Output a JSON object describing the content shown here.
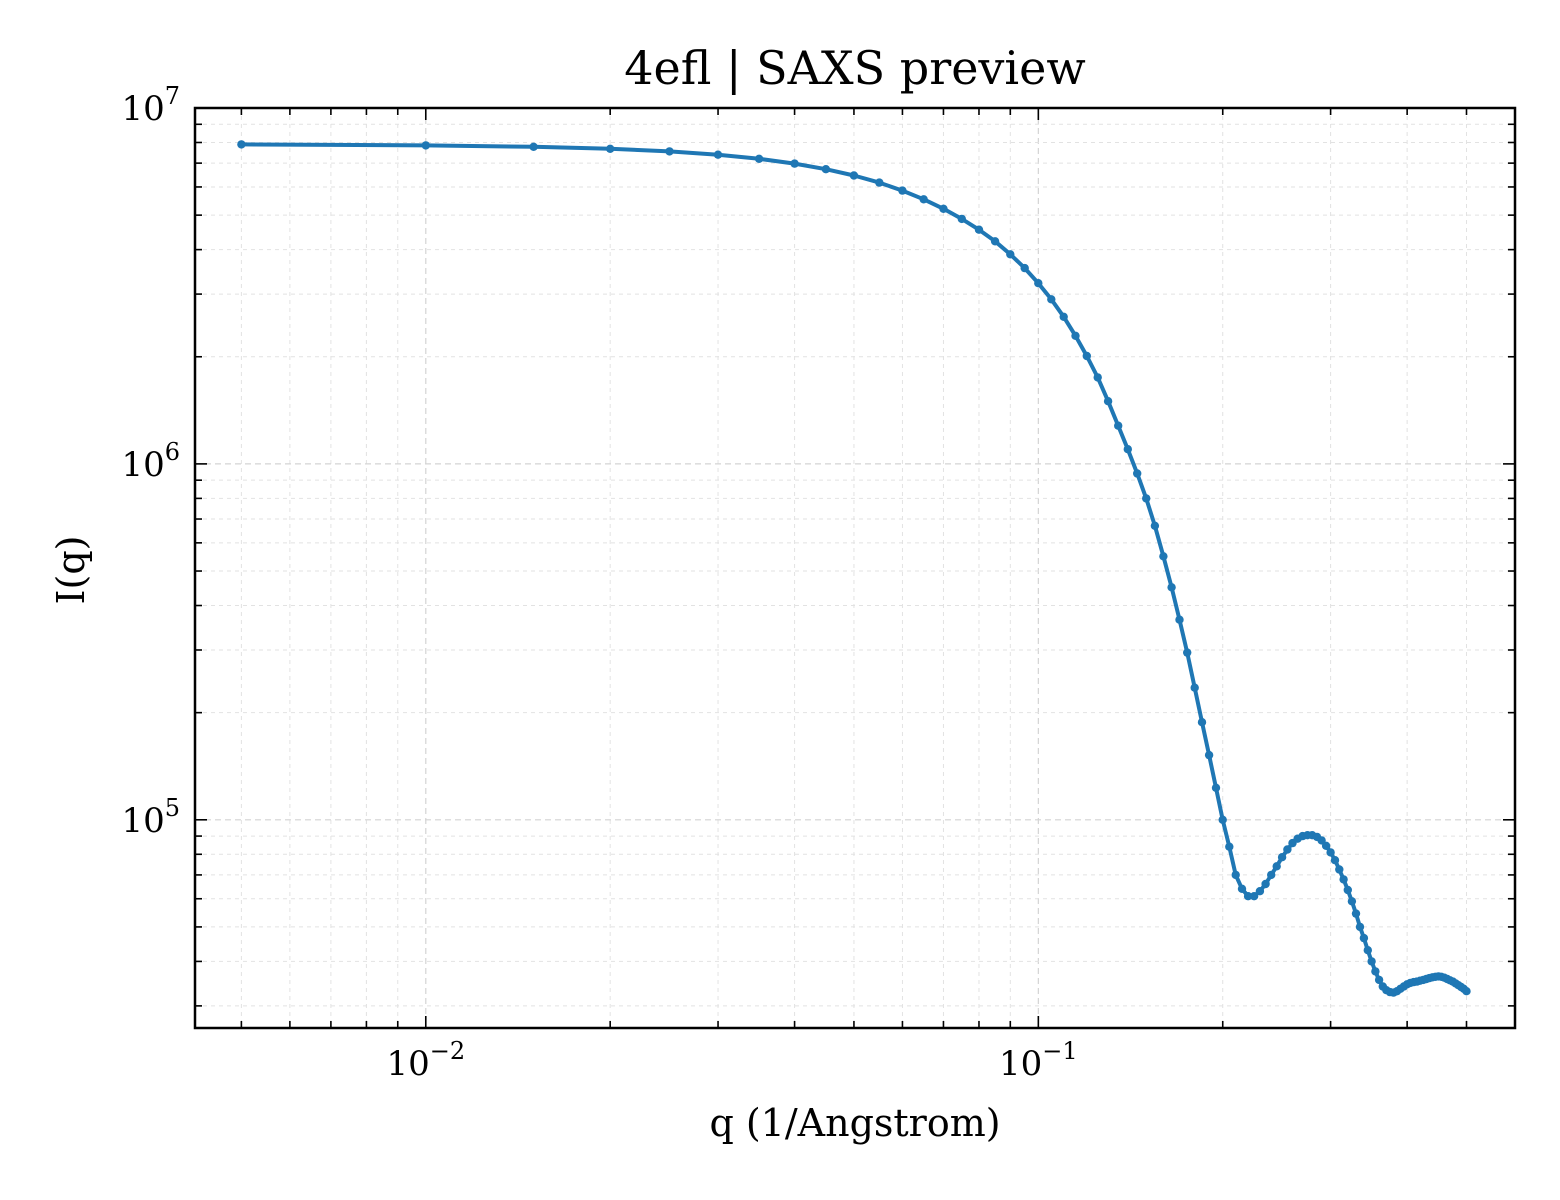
{
  "chart_data": {
    "type": "line",
    "title": "4efl | SAXS preview",
    "xlabel": "q (1/Angstrom)",
    "ylabel": "I(q)",
    "xscale": "log",
    "yscale": "log",
    "xlim": [
      0.0042,
      0.6
    ],
    "ylim": [
      26000,
      10000000
    ],
    "grid": true,
    "x_ticks": [
      {
        "value": 0.01,
        "base": "10",
        "exp": "−2"
      },
      {
        "value": 0.1,
        "base": "10",
        "exp": "−1"
      }
    ],
    "y_ticks": [
      {
        "value": 100000,
        "base": "10",
        "exp": "5"
      },
      {
        "value": 1000000,
        "base": "10",
        "exp": "6"
      },
      {
        "value": 10000000,
        "base": "10",
        "exp": "7"
      }
    ],
    "series": [
      {
        "color": "#1f77b4",
        "marker": "circle",
        "x": [
          0.005,
          0.01,
          0.015,
          0.02,
          0.025,
          0.03,
          0.035,
          0.04,
          0.045,
          0.05,
          0.055,
          0.06,
          0.065,
          0.07,
          0.075,
          0.08,
          0.085,
          0.09,
          0.095,
          0.1,
          0.105,
          0.11,
          0.115,
          0.12,
          0.125,
          0.13,
          0.135,
          0.14,
          0.145,
          0.15,
          0.155,
          0.16,
          0.165,
          0.17,
          0.175,
          0.18,
          0.185,
          0.19,
          0.195,
          0.2,
          0.205,
          0.21,
          0.215,
          0.22,
          0.225,
          0.23,
          0.235,
          0.24,
          0.245,
          0.25,
          0.255,
          0.26,
          0.265,
          0.27,
          0.275,
          0.28,
          0.285,
          0.29,
          0.295,
          0.3,
          0.305,
          0.31,
          0.315,
          0.32,
          0.325,
          0.33,
          0.335,
          0.34,
          0.345,
          0.35,
          0.355,
          0.36,
          0.365,
          0.37,
          0.375,
          0.38,
          0.385,
          0.39,
          0.395,
          0.4,
          0.405,
          0.41,
          0.415,
          0.42,
          0.425,
          0.43,
          0.435,
          0.44,
          0.445,
          0.45,
          0.455,
          0.46,
          0.465,
          0.47,
          0.475,
          0.48,
          0.485,
          0.49,
          0.495,
          0.5
        ],
        "y": [
          7900000,
          7850000,
          7780000,
          7680000,
          7550000,
          7390000,
          7200000,
          6980000,
          6730000,
          6460000,
          6170000,
          5860000,
          5540000,
          5210000,
          4880000,
          4550000,
          4220000,
          3880000,
          3550000,
          3220000,
          2900000,
          2590000,
          2290000,
          2010000,
          1750000,
          1500000,
          1280000,
          1100000,
          940000,
          800000,
          670000,
          550000,
          450000,
          365000,
          295000,
          235000,
          188000,
          152000,
          123000,
          100000,
          84000,
          70000,
          64000,
          61000,
          61000,
          63000,
          66000,
          70000,
          74000,
          78500,
          82500,
          86000,
          88500,
          90000,
          90500,
          90500,
          89500,
          87500,
          84500,
          81000,
          77000,
          72500,
          68000,
          63500,
          59000,
          54500,
          50000,
          46500,
          43000,
          40000,
          37500,
          35500,
          34000,
          33200,
          32800,
          32700,
          33000,
          33500,
          34000,
          34500,
          34800,
          35000,
          35100,
          35300,
          35500,
          35700,
          35900,
          36100,
          36200,
          36300,
          36200,
          36000,
          35700,
          35400,
          35100,
          34700,
          34300,
          33900,
          33500,
          33000
        ]
      }
    ]
  }
}
